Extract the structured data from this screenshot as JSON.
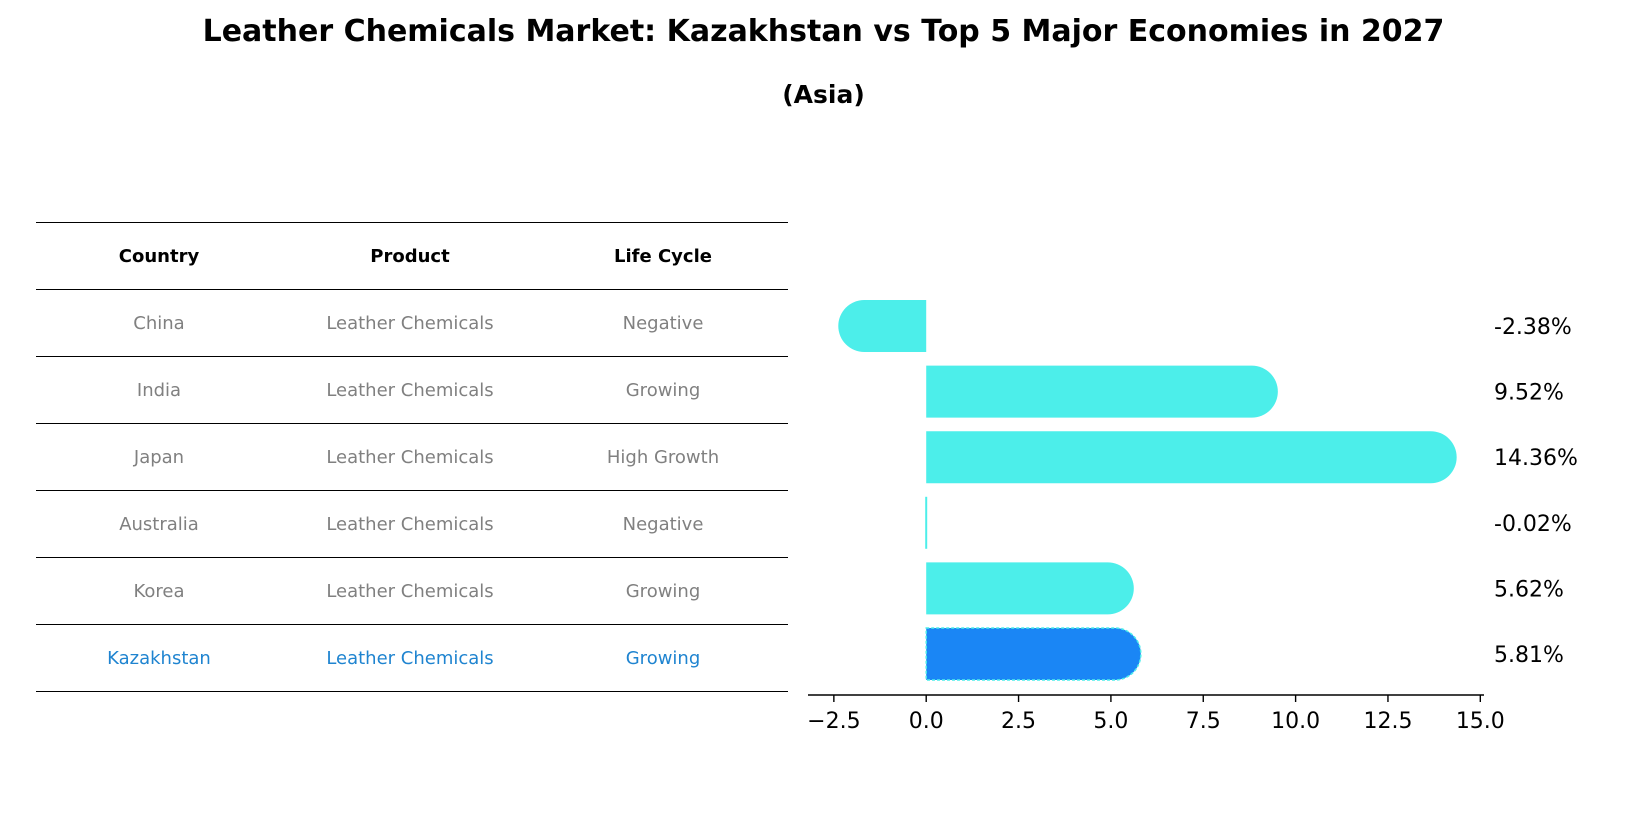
{
  "title": "Leather Chemicals Market: Kazakhstan vs Top 5 Major Economies in 2027",
  "subtitle": "(Asia)",
  "table": {
    "headers": [
      "Country",
      "Product",
      "Life Cycle"
    ],
    "rows": [
      {
        "country": "China",
        "product": "Leather Chemicals",
        "life_cycle": "Negative"
      },
      {
        "country": "India",
        "product": "Leather Chemicals",
        "life_cycle": "Growing"
      },
      {
        "country": "Japan",
        "product": "Leather Chemicals",
        "life_cycle": "High Growth"
      },
      {
        "country": "Australia",
        "product": "Leather Chemicals",
        "life_cycle": "Negative"
      },
      {
        "country": "Korea",
        "product": "Leather Chemicals",
        "life_cycle": "Growing"
      },
      {
        "country": "Kazakhstan",
        "product": "Leather Chemicals",
        "life_cycle": "Growing"
      }
    ],
    "highlight_color": "#1f84d0"
  },
  "chart_data": {
    "type": "bar",
    "orientation": "horizontal",
    "categories": [
      "China",
      "India",
      "Japan",
      "Australia",
      "Korea",
      "Kazakhstan"
    ],
    "values": [
      -2.38,
      9.52,
      14.36,
      -0.02,
      5.62,
      5.81
    ],
    "value_labels": [
      "-2.38%",
      "9.52%",
      "14.36%",
      "-0.02%",
      "5.62%",
      "5.81%"
    ],
    "xlim": [
      -3.2,
      15.1
    ],
    "xticks": [
      -2.5,
      0.0,
      2.5,
      5.0,
      7.5,
      10.0,
      12.5,
      15.0
    ],
    "xtick_labels": [
      "−2.5",
      "0.0",
      "2.5",
      "5.0",
      "7.5",
      "10.0",
      "12.5",
      "15.0"
    ],
    "colors": {
      "default": "#4ceeea",
      "highlight": "#1a86f5"
    },
    "highlight_index": 5,
    "grid": false
  }
}
